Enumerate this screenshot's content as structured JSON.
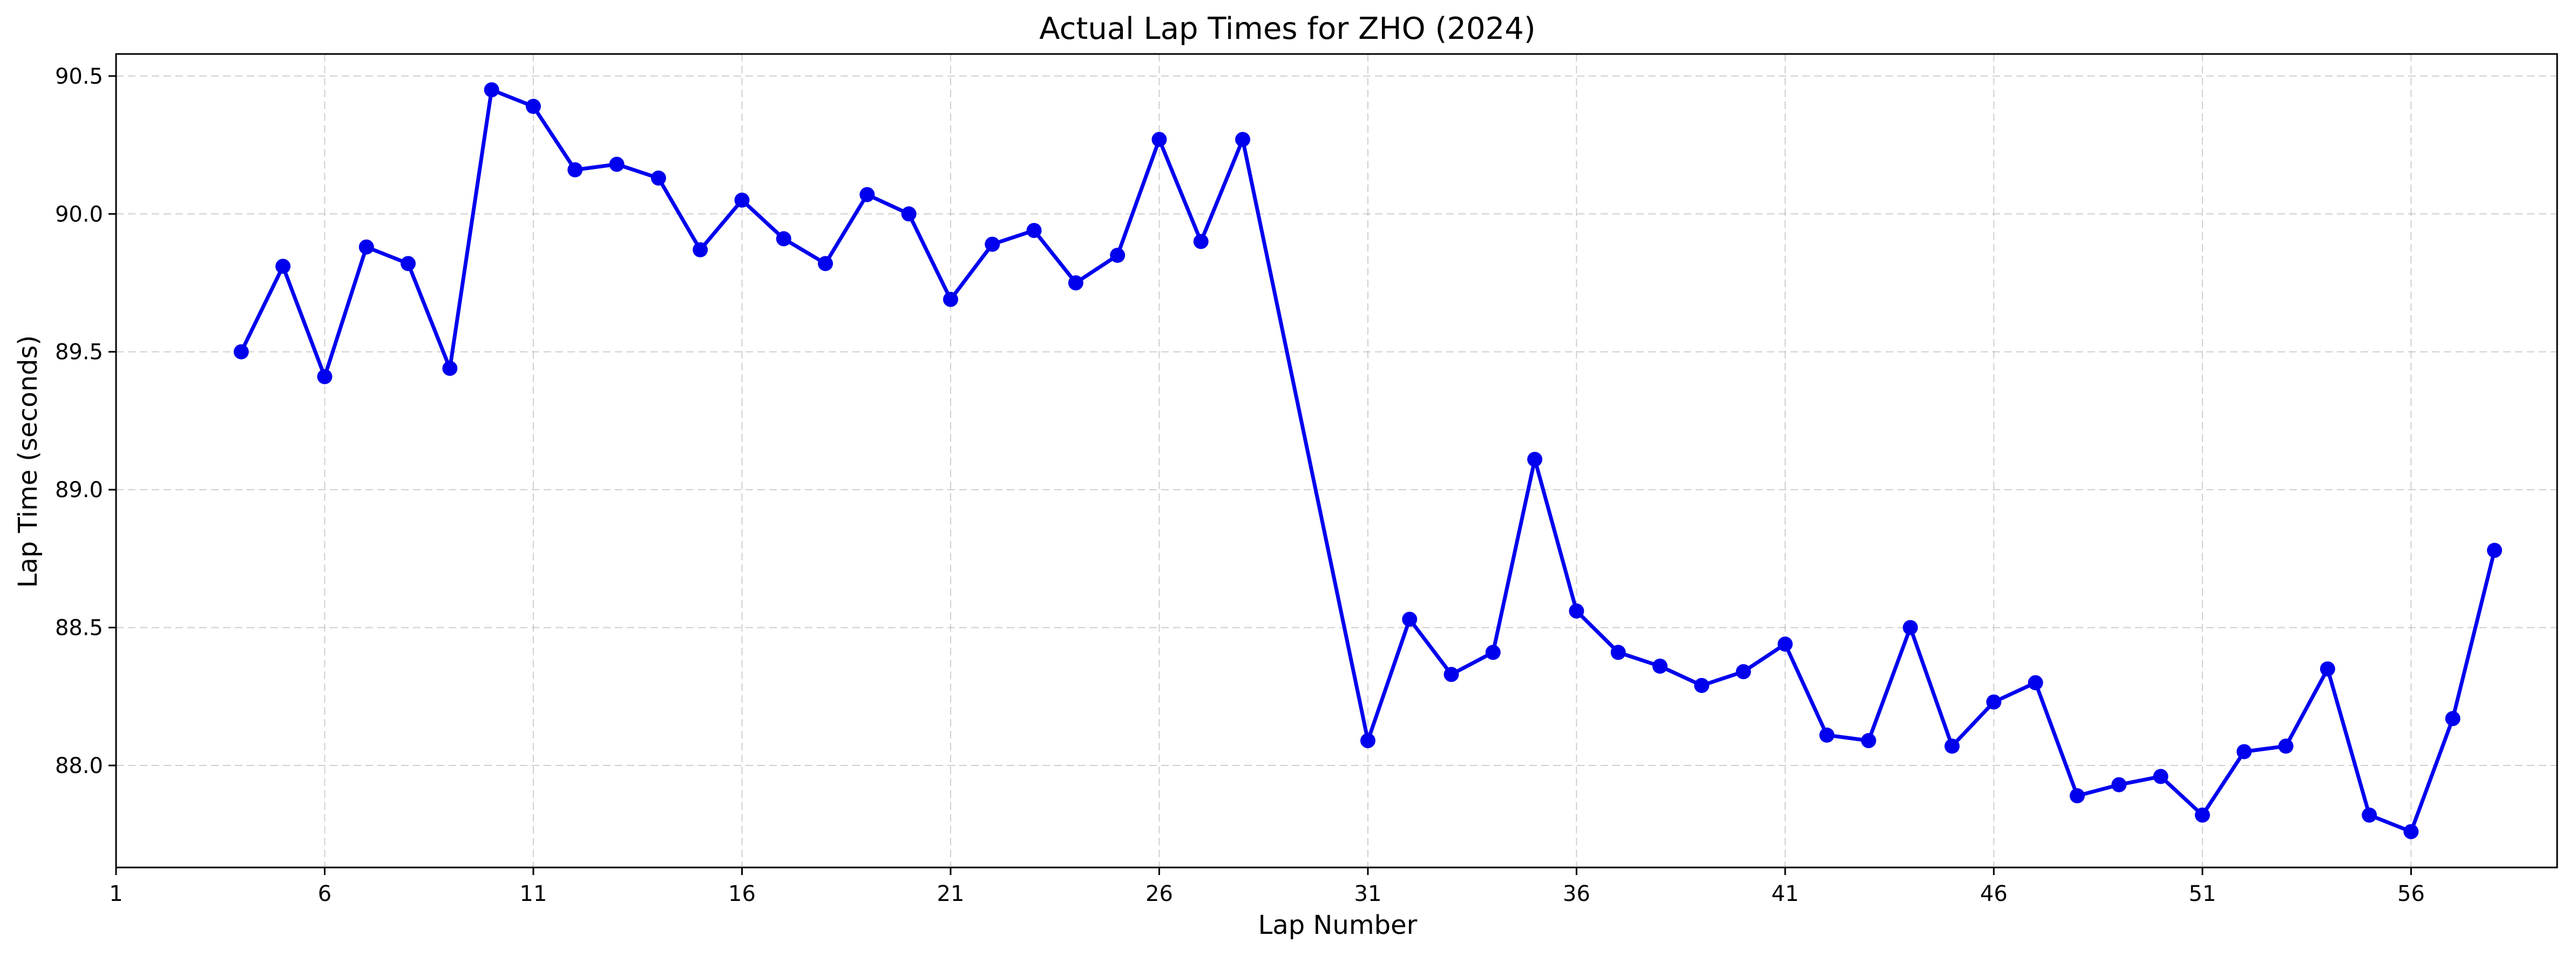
{
  "chart_data": {
    "type": "line",
    "title": "Actual Lap Times for ZHO (2024)",
    "xlabel": "Lap Number",
    "ylabel": "Lap Time (seconds)",
    "xlim": [
      1,
      59.5
    ],
    "ylim": [
      87.63,
      90.58
    ],
    "xticks": [
      1,
      6,
      11,
      16,
      21,
      26,
      31,
      36,
      41,
      46,
      51,
      56
    ],
    "yticks": [
      88.0,
      88.5,
      89.0,
      89.5,
      90.0,
      90.5
    ],
    "ytick_labels": [
      "88.0",
      "88.5",
      "89.0",
      "89.5",
      "90.0",
      "90.5"
    ],
    "grid": true,
    "colors": {
      "series": "#0000ee"
    },
    "series": [
      {
        "x": [
          4,
          5,
          6,
          7,
          8,
          9,
          10,
          11,
          12,
          13,
          14,
          15,
          16,
          17,
          18,
          19,
          20,
          21,
          22,
          23,
          24,
          25,
          26,
          27,
          28,
          31,
          32,
          33,
          34,
          35,
          36,
          37,
          38,
          39,
          40,
          41,
          42,
          43,
          44,
          45,
          46,
          47,
          48,
          49,
          50,
          51,
          52,
          53,
          54,
          55,
          56,
          57,
          58
        ],
        "values": [
          89.5,
          89.81,
          89.41,
          89.88,
          89.82,
          89.44,
          90.45,
          90.39,
          90.16,
          90.18,
          90.13,
          89.87,
          90.05,
          89.91,
          89.82,
          90.07,
          90.0,
          89.69,
          89.89,
          89.94,
          89.75,
          89.85,
          90.27,
          89.9,
          90.27,
          88.09,
          88.53,
          88.33,
          88.41,
          89.11,
          88.56,
          88.41,
          88.36,
          88.29,
          88.34,
          88.44,
          88.11,
          88.09,
          88.5,
          88.07,
          88.23,
          88.3,
          87.89,
          87.93,
          87.96,
          87.82,
          88.05,
          88.07,
          88.35,
          87.82,
          87.76,
          88.17,
          88.78
        ]
      }
    ]
  }
}
